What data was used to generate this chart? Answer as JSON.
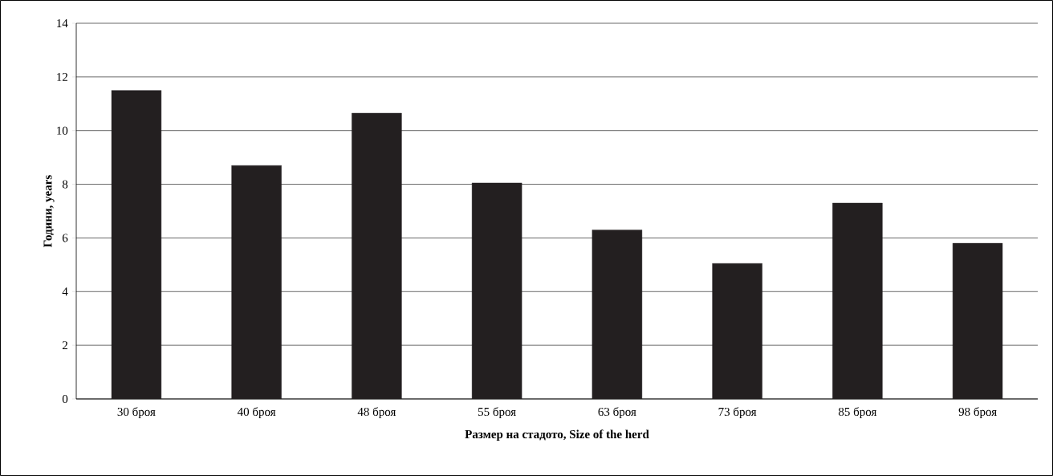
{
  "chart_data": {
    "type": "bar",
    "xlabel": "Размер на стадото, Size of the herd",
    "ylabel": "Години, years",
    "categories": [
      "30 броя",
      "40 броя",
      "48 броя",
      "55 броя",
      "63 броя",
      "73 броя",
      "85 броя",
      "98 броя"
    ],
    "values": [
      11.5,
      8.7,
      10.65,
      8.05,
      6.3,
      5.05,
      7.3,
      5.8
    ],
    "color": "#231f20",
    "ylim": [
      0,
      14
    ],
    "yticks": [
      0,
      2,
      4,
      6,
      8,
      10,
      12,
      14
    ],
    "grid": "y"
  }
}
